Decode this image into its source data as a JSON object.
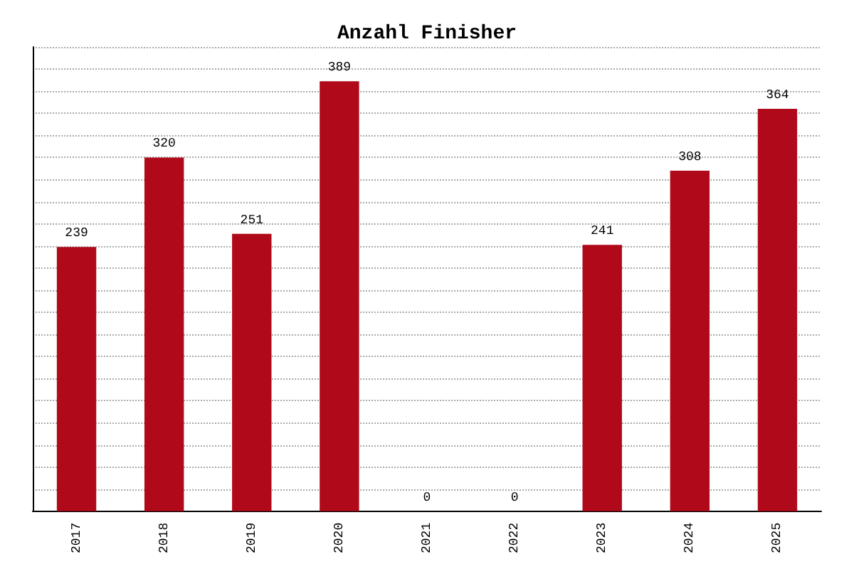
{
  "chart_data": {
    "type": "bar",
    "title": "Anzahl Finisher",
    "categories": [
      "2017",
      "2018",
      "2019",
      "2020",
      "2021",
      "2022",
      "2023",
      "2024",
      "2025"
    ],
    "values": [
      239,
      320,
      251,
      389,
      0,
      0,
      241,
      308,
      364
    ],
    "color": "#b00a1a",
    "ylim": [
      0,
      420
    ],
    "yticks": [
      {
        "value": 0,
        "label": null
      },
      {
        "value": 20,
        "label": null
      },
      {
        "value": 40,
        "label": null
      },
      {
        "value": 60,
        "label": null
      },
      {
        "value": 80,
        "label": null
      },
      {
        "value": 100,
        "label": null
      },
      {
        "value": 120,
        "label": null
      },
      {
        "value": 140,
        "label": null
      },
      {
        "value": 160,
        "label": null
      },
      {
        "value": 180,
        "label": null
      },
      {
        "value": 200,
        "label": null
      },
      {
        "value": 220,
        "label": null
      },
      {
        "value": 240,
        "label": null
      },
      {
        "value": 260,
        "label": null
      },
      {
        "value": 280,
        "label": null
      },
      {
        "value": 300,
        "label": null
      },
      {
        "value": 320,
        "label": null
      },
      {
        "value": 340,
        "label": null
      },
      {
        "value": 360,
        "label": null
      },
      {
        "value": 380,
        "label": null
      },
      {
        "value": 400,
        "label": null
      },
      {
        "value": 420,
        "label": null
      }
    ],
    "grid": "y",
    "data_labels": true,
    "tick_labels": "x"
  }
}
